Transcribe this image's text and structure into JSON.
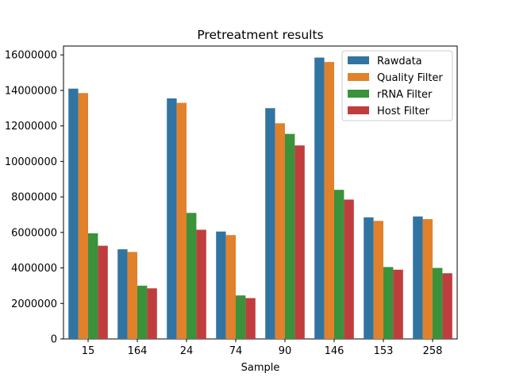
{
  "chart_data": {
    "type": "bar",
    "title": "Pretreatment results",
    "xlabel": "Sample",
    "ylabel": "",
    "categories": [
      "15",
      "164",
      "24",
      "74",
      "90",
      "146",
      "153",
      "258"
    ],
    "series": [
      {
        "name": "Rawdata",
        "color": "#3274a1",
        "values": [
          14100000,
          5050000,
          13550000,
          6050000,
          13000000,
          15850000,
          6850000,
          6900000
        ]
      },
      {
        "name": "Quality Filter",
        "color": "#e1812c",
        "values": [
          13850000,
          4900000,
          13300000,
          5850000,
          12150000,
          15600000,
          6650000,
          6750000
        ]
      },
      {
        "name": "rRNA Filter",
        "color": "#3a923a",
        "values": [
          5950000,
          3000000,
          7100000,
          2450000,
          11550000,
          8400000,
          4050000,
          4000000
        ]
      },
      {
        "name": "Host Filter",
        "color": "#c03d3e",
        "values": [
          5250000,
          2850000,
          6150000,
          2300000,
          10900000,
          7850000,
          3900000,
          3700000
        ]
      }
    ],
    "ylim": [
      0,
      16500000
    ],
    "yticks": [
      0,
      2000000,
      4000000,
      6000000,
      8000000,
      10000000,
      12000000,
      14000000,
      16000000
    ],
    "ytick_labels": [
      "0",
      "2000000",
      "4000000",
      "6000000",
      "8000000",
      "10000000",
      "12000000",
      "14000000",
      "16000000"
    ],
    "grid": false,
    "legend_position": "top-right"
  }
}
